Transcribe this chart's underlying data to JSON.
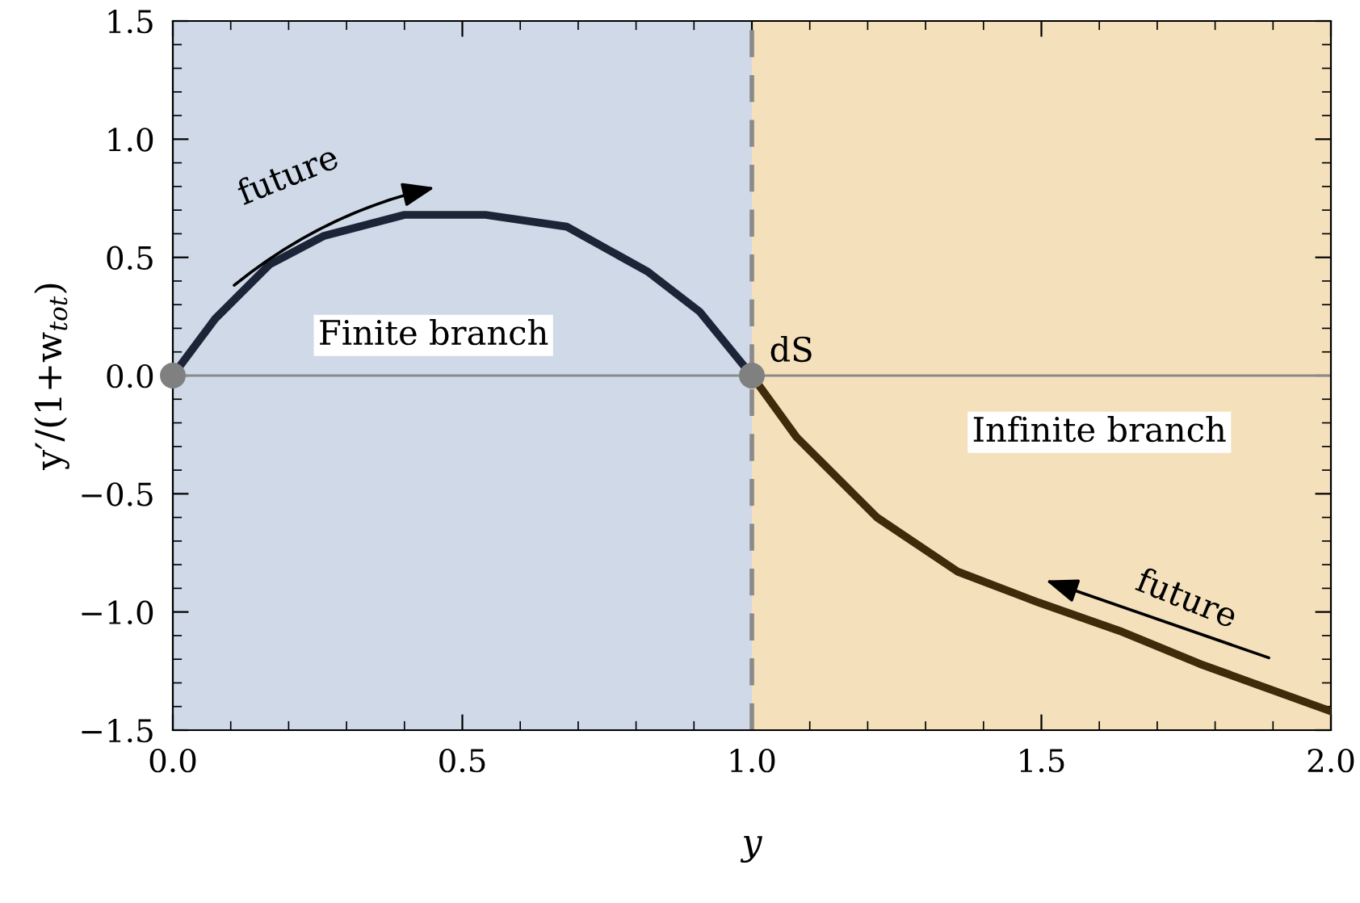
{
  "chart_data": {
    "type": "line",
    "xlabel": "y",
    "ylabel": "y′/(1+w$_{tot}$)",
    "xlim": [
      0,
      2
    ],
    "ylim": [
      -1.5,
      1.5
    ],
    "xticks": [
      {
        "value": 0,
        "label": "0.0"
      },
      {
        "value": 0.5,
        "label": "0.5"
      },
      {
        "value": 1,
        "label": "1.0"
      },
      {
        "value": 1.5,
        "label": "1.5"
      },
      {
        "value": 2,
        "label": "2.0"
      }
    ],
    "yticks": [
      {
        "value": -1.5,
        "label": "−1.5"
      },
      {
        "value": -1,
        "label": "−1.0"
      },
      {
        "value": -0.5,
        "label": "−0.5"
      },
      {
        "value": 0,
        "label": "0.0"
      },
      {
        "value": 0.5,
        "label": "0.5"
      },
      {
        "value": 1,
        "label": "1.0"
      },
      {
        "value": 1.5,
        "label": "1.5"
      }
    ],
    "grid": false,
    "legend": false,
    "series": [
      {
        "color": "#1c2537",
        "x": [
          0,
          0.073,
          0.167,
          0.26,
          0.4,
          0.54,
          0.68,
          0.82,
          0.91,
          1
        ],
        "values": [
          0,
          0.24,
          0.47,
          0.59,
          0.68,
          0.68,
          0.63,
          0.44,
          0.27,
          0
        ]
      },
      {
        "color": "#3f2a0a",
        "x": [
          1,
          1.077,
          1.216,
          1.356,
          1.495,
          1.635,
          1.774,
          2
        ],
        "values": [
          0,
          -0.26,
          -0.6,
          -0.83,
          -0.96,
          -1.08,
          -1.22,
          -1.42
        ]
      },
      {
        "type": "scatter",
        "color": "#808080",
        "marker": "circle",
        "x": [
          0,
          1
        ],
        "values": [
          0,
          0
        ]
      }
    ],
    "bands": [
      {
        "axis": "x",
        "from": 0,
        "to": 1,
        "label": "Finite branch",
        "color": "#cfd9e8"
      },
      {
        "axis": "x",
        "from": 1,
        "to": 2,
        "label": "Infinite branch",
        "color": "#f4e0bb"
      }
    ],
    "ref_lines": [
      {
        "axis": "x",
        "value": 1,
        "color": "#8a8a8a",
        "line_style": "dashed"
      },
      {
        "axis": "y",
        "value": 0,
        "color": "#8a8a8a",
        "line_style": "solid"
      }
    ],
    "annotations": [
      {
        "text": "future",
        "x": 0.3,
        "y": 0.62
      },
      {
        "text": "future",
        "x": 1.7,
        "y": -1.13
      },
      {
        "text": "dS",
        "x": 1,
        "y": 0
      }
    ]
  }
}
